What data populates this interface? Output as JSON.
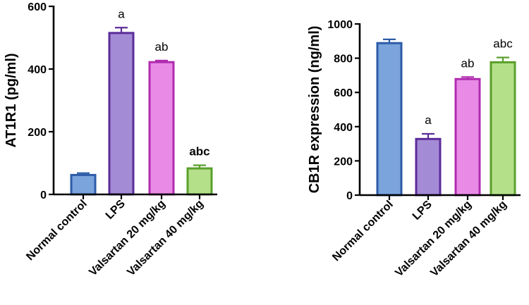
{
  "chart_data": [
    {
      "type": "bar",
      "title": "",
      "xlabel": "",
      "ylabel": "AT1R1 (pg/ml)",
      "ylim": [
        0,
        600
      ],
      "yticks": [
        0,
        200,
        400,
        600
      ],
      "categories": [
        "Normal control",
        "LPS",
        "Valsartan 20 mg/kg",
        "Valsartan 40 mg/kg"
      ],
      "values": [
        62,
        515,
        422,
        83
      ],
      "errors": [
        6,
        17,
        5,
        10
      ],
      "annotations": [
        "",
        "a",
        "ab",
        "abc"
      ],
      "annotation_bold": [
        false,
        false,
        false,
        true
      ],
      "fills": [
        "#7ba3dc",
        "#a48bd6",
        "#e98be6",
        "#b5e08a"
      ],
      "strokes": [
        "#2d5ca8",
        "#5b2d98",
        "#b02bb0",
        "#5aa02c"
      ],
      "grid": false
    },
    {
      "type": "bar",
      "title": "",
      "xlabel": "",
      "ylabel": "CB1R expression (ng/ml)",
      "ylim": [
        0,
        1000
      ],
      "yticks": [
        0,
        200,
        400,
        600,
        800,
        1000
      ],
      "categories": [
        "Normal control",
        "LPS",
        "Valsartan 20 mg/kg",
        "Valsartan 40 mg/kg"
      ],
      "values": [
        888,
        328,
        678,
        776
      ],
      "errors": [
        22,
        30,
        12,
        28
      ],
      "annotations": [
        "",
        "a",
        "ab",
        "abc"
      ],
      "annotation_bold": [
        false,
        false,
        false,
        false
      ],
      "fills": [
        "#7ba3dc",
        "#a48bd6",
        "#e98be6",
        "#b5e08a"
      ],
      "strokes": [
        "#2d5ca8",
        "#5b2d98",
        "#b02bb0",
        "#5aa02c"
      ],
      "grid": false
    }
  ]
}
